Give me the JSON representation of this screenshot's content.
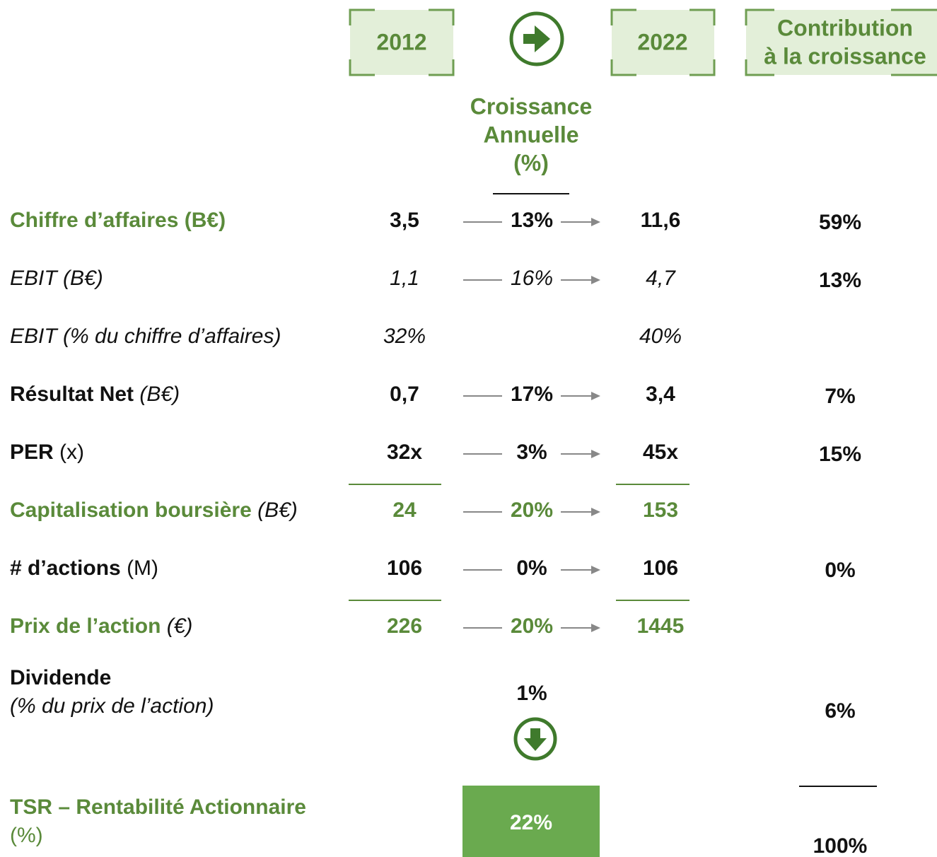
{
  "headers": {
    "start": "2012",
    "end": "2022",
    "contribution": [
      "Contribution",
      "à la croissance"
    ],
    "growth": [
      "Croissance",
      "Annuelle",
      "(%)"
    ]
  },
  "rows": [
    {
      "label": "Chiffre d’affaires (B€)",
      "start": "3,5",
      "growth": "13%",
      "end": "11,6",
      "contribution": "59%"
    },
    {
      "label": "EBIT (B€)",
      "start": "1,1",
      "growth": "16%",
      "end": "4,7",
      "contribution": "13%"
    },
    {
      "label": "EBIT (% du chiffre d’affaires)",
      "start": "32%",
      "end": "40%"
    },
    {
      "label": "Résultat Net",
      "unit": "(B€)",
      "start": "0,7",
      "growth": "17%",
      "end": "3,4",
      "contribution": "7%"
    },
    {
      "label": "PER",
      "unit": "(x)",
      "start": "32x",
      "growth": "3%",
      "end": "45x",
      "contribution": "15%"
    },
    {
      "label": "Capitalisation boursière",
      "unit": "(B€)",
      "start": "24",
      "growth": "20%",
      "end": "153"
    },
    {
      "label": "# d’actions",
      "unit": "(M)",
      "start": "106",
      "growth": "0%",
      "end": "106",
      "contribution": "0%"
    },
    {
      "label": "Prix de l’action",
      "unit": "(€)",
      "start": "226",
      "growth": "20%",
      "end": "1445"
    }
  ],
  "dividend": {
    "label": "Dividende",
    "sublabel": "(% du prix de l’action)",
    "growth": "1%",
    "contribution": "6%"
  },
  "tsr": {
    "label": "TSR – Rentabilité Actionnaire",
    "sublabel": "(%)",
    "value": "22%",
    "contribution": "100%"
  }
}
